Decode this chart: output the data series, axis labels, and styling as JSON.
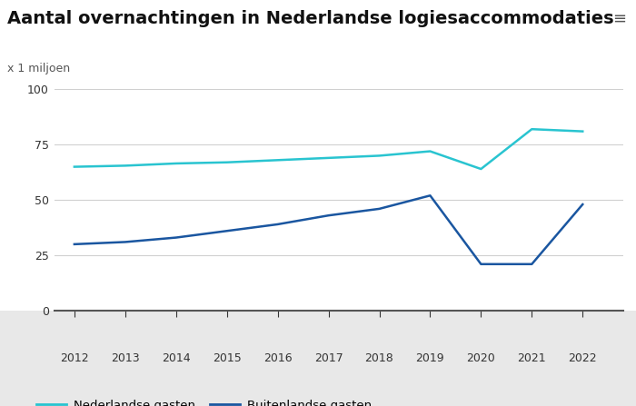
{
  "title": "Aantal overnachtingen in Nederlandse logiesaccommodaties",
  "subtitle": "x 1 miljoen",
  "years": [
    2012,
    2013,
    2014,
    2015,
    2016,
    2017,
    2018,
    2019,
    2020,
    2021,
    2022
  ],
  "nederlandse_gasten": [
    65,
    65.5,
    66.5,
    67,
    68,
    69,
    70,
    72,
    64,
    82,
    81
  ],
  "buitenlandse_gasten": [
    30,
    31,
    33,
    36,
    39,
    43,
    46,
    52,
    21,
    21,
    48
  ],
  "nl_color": "#29c4d0",
  "buit_color": "#1a56a0",
  "ylim": [
    0,
    100
  ],
  "yticks": [
    0,
    25,
    50,
    75,
    100
  ],
  "background_color": "#ffffff",
  "plot_area_color": "#ffffff",
  "bottom_area_color": "#e8e8e8",
  "grid_color": "#d0d0d0",
  "title_fontsize": 14,
  "subtitle_fontsize": 9,
  "tick_fontsize": 9,
  "legend_label_nl": "Nederlandse gasten",
  "legend_label_buit": "Buitenlandse gasten"
}
